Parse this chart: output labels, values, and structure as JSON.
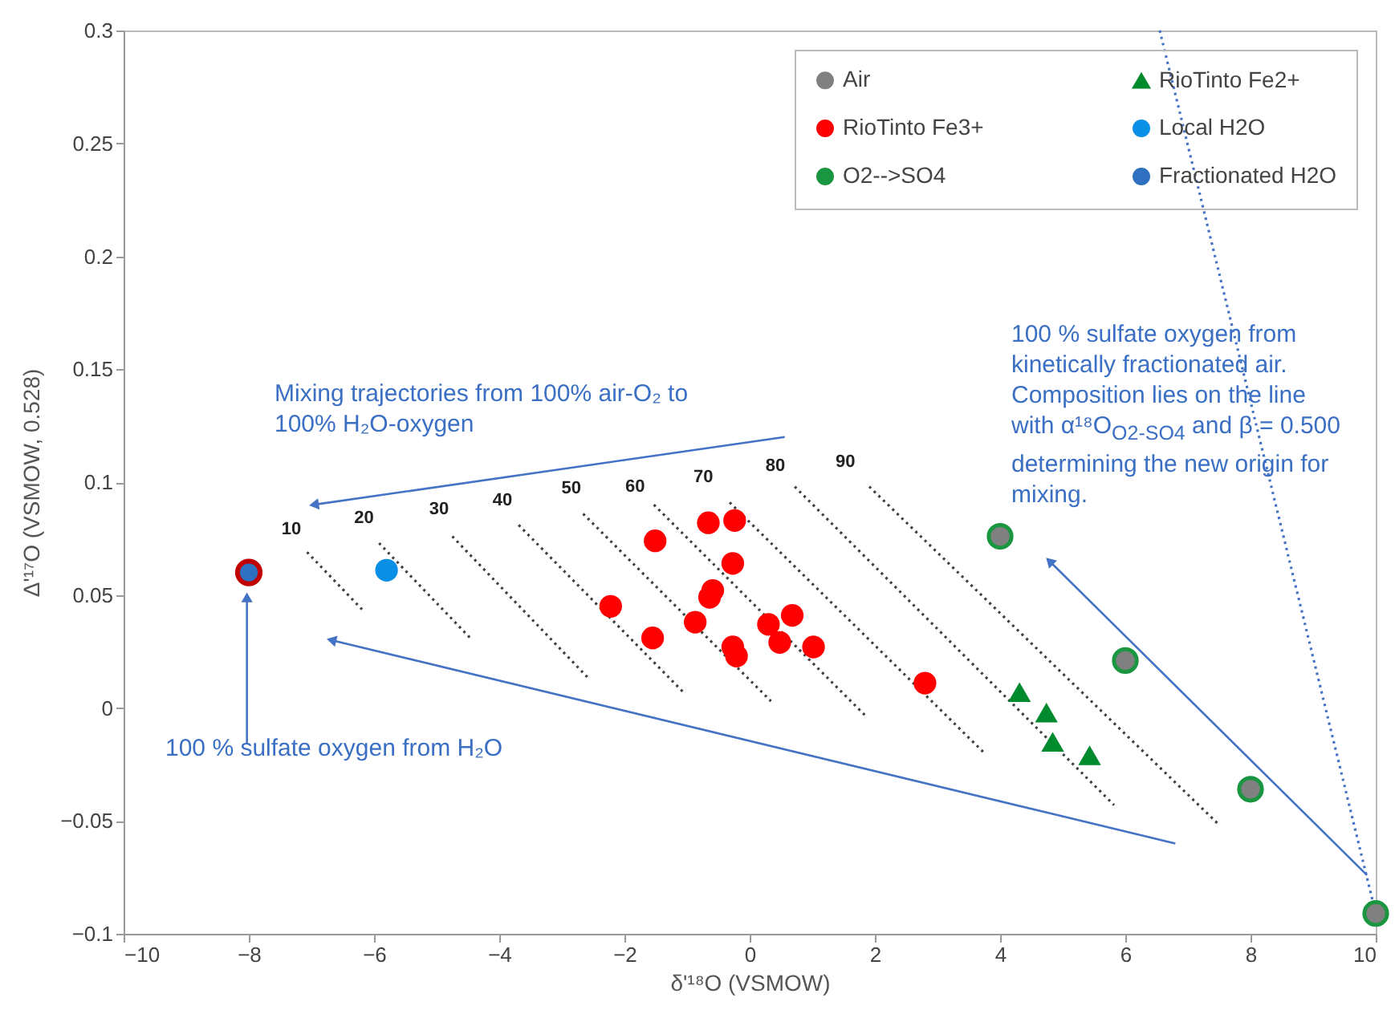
{
  "chart_data": {
    "type": "scatter",
    "xlabel": "δ'¹⁸O (VSMOW)",
    "ylabel": "Δ'¹⁷O (VSMOW, 0.528)",
    "xlim": [
      -10,
      10
    ],
    "xticks": [
      -10,
      -8,
      -6,
      -4,
      -2,
      0,
      2,
      4,
      6,
      8,
      10
    ],
    "ylim": [
      -0.1,
      0.3
    ],
    "yticks": [
      -0.1,
      -0.05,
      0,
      0.05,
      0.1,
      0.15,
      0.2,
      0.25,
      0.3
    ],
    "grid": false,
    "legend": "top right",
    "marker": "circle",
    "series": [
      {
        "type": "line",
        "color": "#4472c4",
        "line_style": "dotted",
        "marker": "none",
        "x": [
          6.55,
          10
        ],
        "values": [
          0.3,
          -0.091
        ]
      },
      {
        "type": "line",
        "color": "#404040",
        "line_style": "dotted",
        "marker": "none",
        "x": [
          -7.07,
          -6.17
        ],
        "values": [
          0.069,
          0.043
        ]
      },
      {
        "type": "line",
        "color": "#404040",
        "line_style": "dotted",
        "marker": "none",
        "x": [
          -5.92,
          -4.43
        ],
        "values": [
          0.073,
          0.03
        ]
      },
      {
        "type": "line",
        "color": "#404040",
        "line_style": "dotted",
        "marker": "none",
        "x": [
          -4.75,
          -2.57
        ],
        "values": [
          0.076,
          0.013
        ]
      },
      {
        "type": "line",
        "color": "#404040",
        "line_style": "dotted",
        "marker": "none",
        "x": [
          -3.69,
          -1.06
        ],
        "values": [
          0.081,
          0.007
        ]
      },
      {
        "type": "line",
        "color": "#404040",
        "line_style": "dotted",
        "marker": "none",
        "x": [
          -2.66,
          0.34
        ],
        "values": [
          0.086,
          0.003
        ]
      },
      {
        "type": "line",
        "color": "#404040",
        "line_style": "dotted",
        "marker": "none",
        "x": [
          -1.53,
          1.87
        ],
        "values": [
          0.09,
          -0.004
        ]
      },
      {
        "type": "line",
        "color": "#404040",
        "line_style": "dotted",
        "marker": "none",
        "x": [
          -0.32,
          3.75
        ],
        "values": [
          0.091,
          -0.02
        ]
      },
      {
        "type": "line",
        "color": "#404040",
        "line_style": "dotted",
        "marker": "none",
        "x": [
          0.72,
          5.82
        ],
        "values": [
          0.098,
          -0.043
        ]
      },
      {
        "type": "line",
        "color": "#404040",
        "line_style": "dotted",
        "marker": "none",
        "x": [
          1.91,
          7.47
        ],
        "values": [
          0.098,
          -0.051
        ]
      },
      {
        "name": "Air",
        "color": "#808080",
        "x": [
          4,
          6,
          8,
          10
        ],
        "values": [
          0.076,
          0.021,
          -0.036,
          -0.091
        ]
      },
      {
        "name": "RioTinto Fe3+",
        "color": "#ff0000",
        "x": [
          -0.66,
          -0.24,
          -0.27,
          -0.59,
          -0.64,
          -0.87,
          0.3,
          0.68,
          0.48,
          1.02,
          -0.27,
          -0.21,
          2.8,
          -1.51,
          -2.22,
          -1.55
        ],
        "values": [
          0.082,
          0.083,
          0.064,
          0.052,
          0.049,
          0.038,
          0.037,
          0.041,
          0.029,
          0.027,
          0.027,
          0.023,
          0.011,
          0.074,
          0.045,
          0.031
        ]
      },
      {
        "name": "O2-->SO4",
        "color": "#1a9641",
        "x": [
          4,
          6,
          8,
          10
        ],
        "values": [
          0.076,
          0.021,
          -0.036,
          -0.091
        ]
      },
      {
        "name": "RioTinto Fe2+",
        "color": "#008a2e",
        "marker": "triangle",
        "x": [
          4.31,
          4.74,
          4.84,
          5.43
        ],
        "values": [
          0.007,
          -0.002,
          -0.015,
          -0.021
        ]
      },
      {
        "name": "Local H2O",
        "color": "#0a8fe6",
        "x": [
          -5.8
        ],
        "values": [
          0.061
        ]
      },
      {
        "name": "Fractionated H2O",
        "color": "#2f6fc0",
        "x": [
          -8
        ],
        "values": [
          0.06
        ]
      }
    ],
    "annotations": [
      "10",
      "20",
      "30",
      "40",
      "50",
      "60",
      "70",
      "80",
      "90",
      "Mixing trajectories from 100% air-O₂ to 100% H₂O-oxygen",
      "100 % sulfate oxygen from H₂O",
      "100 % sulfate oxygen from kinetically fractionated air. Composition lies on the line with α¹⁸O$_{O2-SO4}$ and β = 0.500 determining the new origin for mixing."
    ]
  }
}
